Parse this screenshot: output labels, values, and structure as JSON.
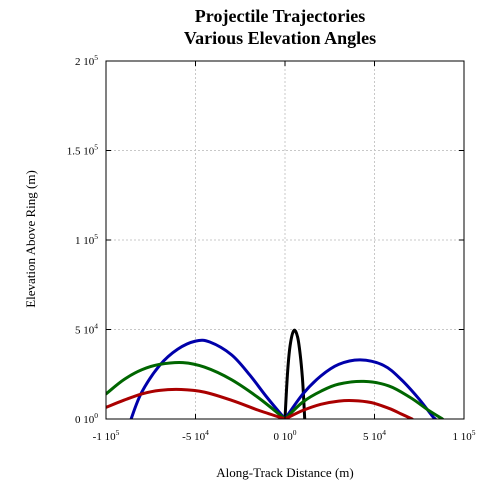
{
  "chart_data": {
    "type": "line",
    "title": "Projectile Trajectories",
    "subtitle": "Various Elevation Angles",
    "xlabel": "Along-Track Distance (m)",
    "ylabel": "Elevation Above Ring (m)",
    "xlim": [
      -100000,
      100000
    ],
    "ylim": [
      0,
      200000
    ],
    "grid": true,
    "x_ticks": [
      {
        "value": -100000,
        "mant": "-1 10",
        "exp": "5"
      },
      {
        "value": -50000,
        "mant": "-5 10",
        "exp": "4"
      },
      {
        "value": 0,
        "mant": "0 10",
        "exp": "0"
      },
      {
        "value": 50000,
        "mant": "5 10",
        "exp": "4"
      },
      {
        "value": 100000,
        "mant": "1 10",
        "exp": "5"
      }
    ],
    "y_ticks": [
      {
        "value": 0,
        "mant": "0 10",
        "exp": "0"
      },
      {
        "value": 50000,
        "mant": "5 10",
        "exp": "4"
      },
      {
        "value": 100000,
        "mant": "1 10",
        "exp": "5"
      },
      {
        "value": 150000,
        "mant": "1.5 10",
        "exp": "5"
      },
      {
        "value": 200000,
        "mant": "2 10",
        "exp": "5"
      }
    ],
    "series": [
      {
        "color": "#000000",
        "points": [
          [
            0,
            0
          ],
          [
            1500,
            27000
          ],
          [
            3000,
            42000
          ],
          [
            5000,
            49500
          ],
          [
            7000,
            46000
          ],
          [
            8500,
            36000
          ],
          [
            9700,
            23000
          ],
          [
            10500,
            10000
          ],
          [
            11000,
            0
          ]
        ]
      },
      {
        "color": "#0000aa",
        "points": [
          [
            -86000,
            0
          ],
          [
            -80000,
            15000
          ],
          [
            -70000,
            30000
          ],
          [
            -60000,
            39000
          ],
          [
            -50000,
            43500
          ],
          [
            -42000,
            43000
          ],
          [
            -30000,
            36000
          ],
          [
            -20000,
            25000
          ],
          [
            -10000,
            12000
          ],
          [
            0,
            0
          ]
        ]
      },
      {
        "color": "#0000aa",
        "points": [
          [
            0,
            0
          ],
          [
            10000,
            14000
          ],
          [
            20000,
            24000
          ],
          [
            30000,
            30500
          ],
          [
            42000,
            33000
          ],
          [
            55000,
            30000
          ],
          [
            65000,
            22000
          ],
          [
            75000,
            11000
          ],
          [
            82000,
            2000
          ],
          [
            84000,
            0
          ]
        ]
      },
      {
        "color": "#006600",
        "points": [
          [
            -100000,
            14000
          ],
          [
            -90000,
            22000
          ],
          [
            -80000,
            27500
          ],
          [
            -70000,
            30500
          ],
          [
            -57000,
            31500
          ],
          [
            -45000,
            29000
          ],
          [
            -30000,
            22000
          ],
          [
            -15000,
            12000
          ],
          [
            0,
            0
          ]
        ]
      },
      {
        "color": "#006600",
        "points": [
          [
            0,
            0
          ],
          [
            10000,
            9500
          ],
          [
            20000,
            15500
          ],
          [
            30000,
            19500
          ],
          [
            44000,
            21000
          ],
          [
            58000,
            18500
          ],
          [
            70000,
            12000
          ],
          [
            80000,
            5000
          ],
          [
            88000,
            0
          ]
        ]
      },
      {
        "color": "#aa0000",
        "points": [
          [
            -100000,
            6500
          ],
          [
            -90000,
            10500
          ],
          [
            -80000,
            14000
          ],
          [
            -70000,
            16000
          ],
          [
            -58000,
            16500
          ],
          [
            -45000,
            15000
          ],
          [
            -30000,
            10500
          ],
          [
            -15000,
            5000
          ],
          [
            0,
            0
          ]
        ]
      },
      {
        "color": "#aa0000",
        "points": [
          [
            0,
            0
          ],
          [
            10000,
            4800
          ],
          [
            20000,
            8200
          ],
          [
            30000,
            10000
          ],
          [
            38000,
            10300
          ],
          [
            48000,
            9200
          ],
          [
            58000,
            6000
          ],
          [
            65000,
            2800
          ],
          [
            71000,
            0
          ]
        ]
      }
    ]
  }
}
